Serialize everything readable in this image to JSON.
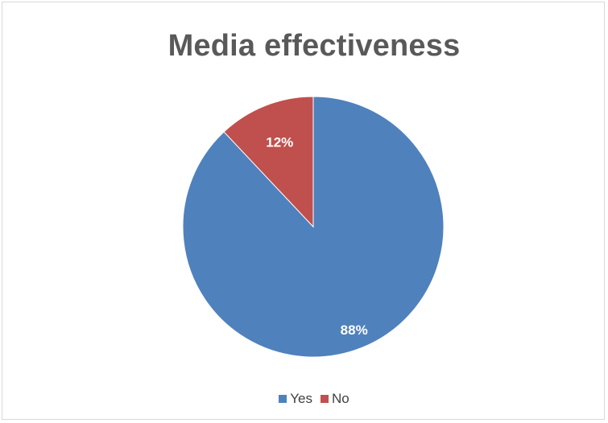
{
  "chart_data": {
    "type": "pie",
    "title": "Media effectiveness",
    "categories": [
      "Yes",
      "No"
    ],
    "values": [
      88,
      12
    ],
    "data_labels": [
      "88%",
      "12%"
    ],
    "colors": [
      "#4f81bd",
      "#c0504d"
    ],
    "legend_position": "bottom"
  }
}
